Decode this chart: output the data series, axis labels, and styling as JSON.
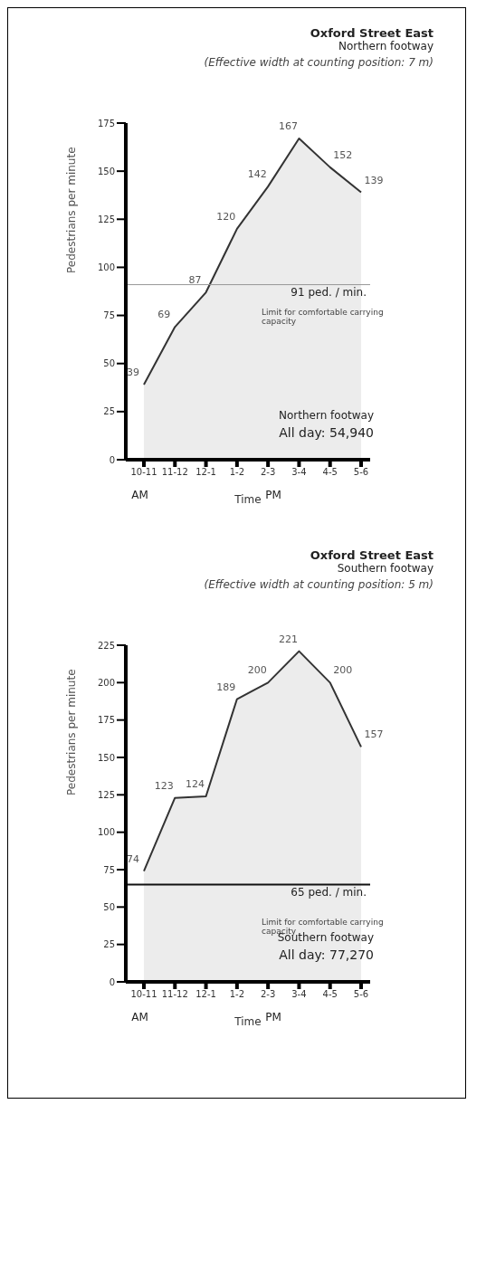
{
  "chart_data": [
    {
      "type": "area",
      "title": "Oxford Street East",
      "subtitle": "Northern footway",
      "xlabel": "Time",
      "ylabel": "Pedestrians per minute",
      "categories": [
        "10-11",
        "11-12",
        "12-1",
        "1-2",
        "2-3",
        "3-4",
        "4-5",
        "5-6"
      ],
      "series": [
        {
          "color": "#333333",
          "values": [
            39,
            69,
            87,
            120,
            142,
            167,
            152,
            139
          ]
        }
      ],
      "ylim": [
        0,
        175
      ],
      "yticks": [
        0,
        25,
        50,
        75,
        100,
        125,
        150,
        175
      ],
      "grid": false,
      "legend": false,
      "marker": "none",
      "data_labels": true,
      "ref_lines": [
        {
          "axis": "y",
          "value": 91,
          "label": "91 ped. / min.",
          "color": "#999999"
        }
      ],
      "annotations": [
        "(Effective width at counting position: 7 m)",
        "Limit for comfortable carrying capacity",
        "Northern footway",
        "All day: 54,940",
        "AM",
        "PM"
      ]
    },
    {
      "type": "area",
      "title": "Oxford Street East",
      "subtitle": "Southern footway",
      "xlabel": "Time",
      "ylabel": "Pedestrians per minute",
      "categories": [
        "10-11",
        "11-12",
        "12-1",
        "1-2",
        "2-3",
        "3-4",
        "4-5",
        "5-6"
      ],
      "series": [
        {
          "color": "#333333",
          "values": [
            74,
            123,
            124,
            189,
            200,
            221,
            200,
            157
          ]
        }
      ],
      "ylim": [
        0,
        225
      ],
      "yticks": [
        0,
        25,
        50,
        75,
        100,
        125,
        150,
        175,
        200,
        225
      ],
      "grid": false,
      "legend": false,
      "marker": "none",
      "data_labels": true,
      "ref_lines": [
        {
          "axis": "y",
          "value": 65,
          "label": "65 ped. / min.",
          "color": "#111111"
        }
      ],
      "annotations": [
        "(Effective width at counting position: 5 m)",
        "Limit for comfortable carrying capacity",
        "Southern footway",
        "All day: 77,270",
        "AM",
        "PM"
      ]
    }
  ]
}
